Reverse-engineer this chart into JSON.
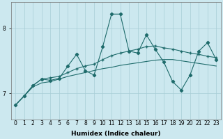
{
  "xlabel": "Humidex (Indice chaleur)",
  "bg_color": "#cce8ef",
  "line_color": "#1e6b6b",
  "x_values": [
    0,
    1,
    2,
    3,
    4,
    5,
    6,
    7,
    8,
    9,
    10,
    11,
    12,
    13,
    14,
    15,
    16,
    17,
    18,
    19,
    20,
    21,
    22,
    23
  ],
  "line1": [
    6.82,
    6.96,
    7.12,
    7.22,
    7.2,
    7.23,
    7.42,
    7.6,
    7.35,
    7.28,
    7.72,
    8.22,
    8.22,
    7.65,
    7.62,
    7.9,
    7.68,
    7.48,
    7.18,
    7.05,
    7.28,
    7.65,
    7.78,
    7.52
  ],
  "line2": [
    6.82,
    6.96,
    7.12,
    7.22,
    7.24,
    7.26,
    7.32,
    7.38,
    7.42,
    7.45,
    7.52,
    7.58,
    7.62,
    7.65,
    7.68,
    7.72,
    7.73,
    7.7,
    7.68,
    7.65,
    7.62,
    7.6,
    7.57,
    7.55
  ],
  "line3": [
    6.82,
    6.96,
    7.1,
    7.16,
    7.18,
    7.22,
    7.26,
    7.29,
    7.32,
    7.35,
    7.38,
    7.4,
    7.43,
    7.45,
    7.47,
    7.49,
    7.51,
    7.52,
    7.52,
    7.5,
    7.48,
    7.46,
    7.44,
    7.42
  ],
  "ylim": [
    6.6,
    8.4
  ],
  "yticks": [
    7.0,
    8.0
  ],
  "xtick_labels": [
    "0",
    "1",
    "2",
    "3",
    "4",
    "5",
    "6",
    "7",
    "8",
    "9",
    "10",
    "11",
    "12",
    "13",
    "14",
    "15",
    "16",
    "17",
    "18",
    "19",
    "20",
    "21",
    "22",
    "23"
  ],
  "grid_color": "#a8cdd6",
  "label_fontsize": 6.5,
  "tick_fontsize": 5.5
}
